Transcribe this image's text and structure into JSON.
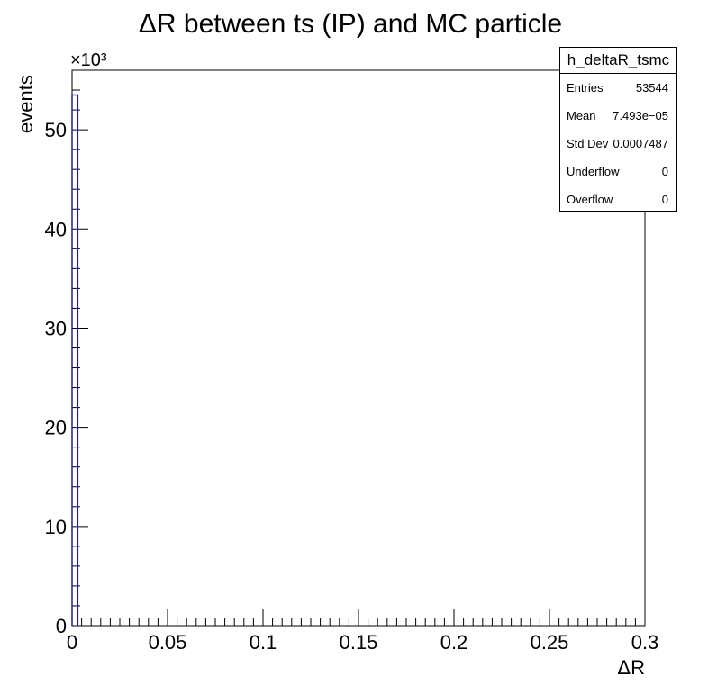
{
  "chart_data": {
    "type": "bar",
    "title": "ΔR between ts (IP) and MC particle",
    "xlabel": "ΔR",
    "ylabel": "events",
    "y_multiplier": "×10³",
    "xlim": [
      0,
      0.3
    ],
    "ylim": [
      0,
      56000
    ],
    "x_ticks": [
      "0",
      "0.05",
      "0.1",
      "0.15",
      "0.2",
      "0.25",
      "0.3"
    ],
    "y_ticks": [
      "0",
      "10",
      "20",
      "30",
      "40",
      "50"
    ],
    "bin_width": 0.003,
    "bins": [
      {
        "x_low": 0.0,
        "x_high": 0.003,
        "value": 53500
      }
    ],
    "line_color": "#1c1cb4",
    "grid": false,
    "legend": "none"
  },
  "stats": {
    "name": "h_deltaR_tsmc",
    "rows": [
      {
        "label": "Entries",
        "value": "53544"
      },
      {
        "label": "Mean",
        "value": "7.493e−05"
      },
      {
        "label": "Std Dev",
        "value": "0.0007487"
      },
      {
        "label": "Underflow",
        "value": "0"
      },
      {
        "label": "Overflow",
        "value": "0"
      }
    ]
  }
}
